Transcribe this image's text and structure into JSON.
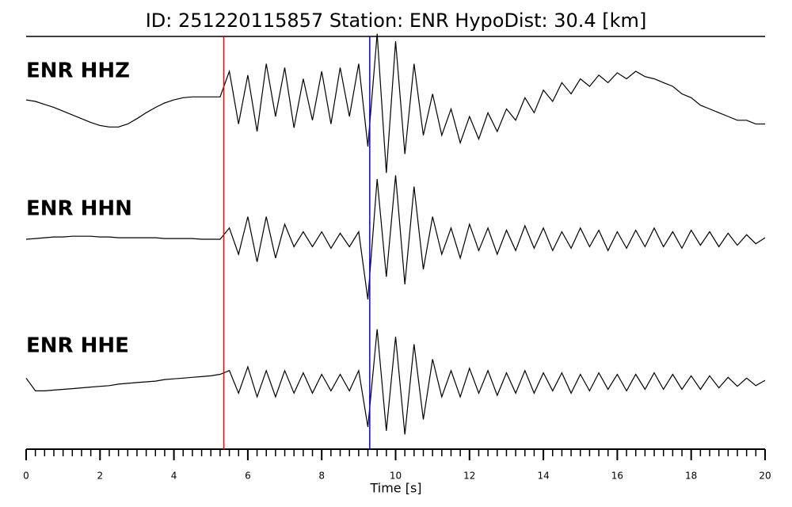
{
  "chart_data": {
    "type": "line",
    "title": "ID: 251220115857   Station: ENR   HypoDist:    30.4 [km]",
    "x_label": "Time [s]",
    "xlim": [
      0,
      20
    ],
    "xticks": [
      0,
      2,
      4,
      6,
      8,
      10,
      12,
      14,
      16,
      18,
      20
    ],
    "xminorticks": [
      0,
      0.25,
      0.5,
      0.75,
      1,
      1.25,
      1.5,
      1.75,
      2,
      2.25,
      2.5,
      2.75,
      3,
      3.25,
      3.5,
      3.75,
      4,
      4.25,
      4.5,
      4.75,
      5,
      5.25,
      5.5,
      5.75,
      6,
      6.25,
      6.5,
      6.75,
      7,
      7.25,
      7.5,
      7.75,
      8,
      8.25,
      8.5,
      8.75,
      9,
      9.25,
      9.5,
      9.75,
      10,
      10.25,
      10.5,
      10.75,
      11,
      11.25,
      11.5,
      11.75,
      12,
      12.25,
      12.5,
      12.75,
      13,
      13.25,
      13.5,
      13.75,
      14,
      14.25,
      14.5,
      14.75,
      15,
      15.25,
      15.5,
      15.75,
      16,
      16.25,
      16.5,
      16.75,
      17,
      17.25,
      17.5,
      17.75,
      18,
      18.25,
      18.5,
      18.75,
      19,
      19.25,
      19.5,
      19.75,
      20
    ],
    "ylim": [
      -1,
      1
    ],
    "label_color": "#4c9a00",
    "markers": [
      {
        "x": 5.35,
        "color": "#ff0000"
      },
      {
        "x": 9.3,
        "color": "#0000ff"
      }
    ],
    "x": [
      0,
      0.25,
      0.5,
      0.75,
      1,
      1.25,
      1.5,
      1.75,
      2,
      2.25,
      2.5,
      2.75,
      3,
      3.25,
      3.5,
      3.75,
      4,
      4.25,
      4.5,
      4.75,
      5,
      5.25,
      5.5,
      5.75,
      6,
      6.25,
      6.5,
      6.75,
      7,
      7.25,
      7.5,
      7.75,
      8,
      8.25,
      8.5,
      8.75,
      9,
      9.25,
      9.5,
      9.75,
      10,
      10.25,
      10.5,
      10.75,
      11,
      11.25,
      11.5,
      11.75,
      12,
      12.25,
      12.5,
      12.75,
      13,
      13.25,
      13.5,
      13.75,
      14,
      14.25,
      14.5,
      14.75,
      15,
      15.25,
      15.5,
      15.75,
      16,
      16.25,
      16.5,
      16.75,
      17,
      17.25,
      17.5,
      17.75,
      18,
      18.25,
      18.5,
      18.75,
      19,
      19.25,
      19.5,
      19.75,
      20
    ],
    "series": [
      {
        "name": "ENR HHZ",
        "color": "#000000",
        "values": [
          0.02,
          0,
          -0.04,
          -0.08,
          -0.13,
          -0.18,
          -0.23,
          -0.28,
          -0.32,
          -0.34,
          -0.34,
          -0.3,
          -0.23,
          -0.15,
          -0.08,
          -0.02,
          0.02,
          0.05,
          0.06,
          0.06,
          0.06,
          0.06,
          0.4,
          -0.3,
          0.35,
          -0.4,
          0.5,
          -0.2,
          0.45,
          -0.35,
          0.3,
          -0.25,
          0.4,
          -0.3,
          0.45,
          -0.2,
          0.5,
          -0.6,
          0.9,
          -0.95,
          0.8,
          -0.7,
          0.5,
          -0.45,
          0.1,
          -0.45,
          -0.1,
          -0.55,
          -0.2,
          -0.5,
          -0.15,
          -0.4,
          -0.1,
          -0.25,
          0.05,
          -0.15,
          0.15,
          0,
          0.25,
          0.1,
          0.3,
          0.2,
          0.35,
          0.25,
          0.38,
          0.3,
          0.4,
          0.33,
          0.3,
          0.25,
          0.2,
          0.1,
          0.05,
          -0.05,
          -0.1,
          -0.15,
          -0.2,
          -0.25,
          -0.25,
          -0.3,
          -0.3
        ]
      },
      {
        "name": "ENR HHN",
        "color": "#000000",
        "values": [
          0,
          0.01,
          0.02,
          0.03,
          0.03,
          0.04,
          0.04,
          0.04,
          0.03,
          0.03,
          0.02,
          0.02,
          0.02,
          0.02,
          0.02,
          0.01,
          0.01,
          0.01,
          0.01,
          0,
          0,
          0,
          0.15,
          -0.2,
          0.3,
          -0.3,
          0.3,
          -0.25,
          0.2,
          -0.1,
          0.1,
          -0.1,
          0.1,
          -0.12,
          0.08,
          -0.1,
          0.1,
          -0.8,
          0.8,
          -0.5,
          0.85,
          -0.6,
          0.7,
          -0.4,
          0.3,
          -0.2,
          0.15,
          -0.25,
          0.2,
          -0.15,
          0.15,
          -0.2,
          0.12,
          -0.15,
          0.18,
          -0.12,
          0.15,
          -0.15,
          0.1,
          -0.12,
          0.15,
          -0.1,
          0.12,
          -0.15,
          0.1,
          -0.12,
          0.12,
          -0.1,
          0.15,
          -0.1,
          0.1,
          -0.12,
          0.12,
          -0.08,
          0.1,
          -0.1,
          0.08,
          -0.08,
          0.06,
          -0.06,
          0.02
        ]
      },
      {
        "name": "ENR HHE",
        "color": "#000000",
        "values": [
          0.05,
          -0.12,
          -0.12,
          -0.11,
          -0.1,
          -0.09,
          -0.08,
          -0.07,
          -0.06,
          -0.05,
          -0.03,
          -0.02,
          -0.01,
          0,
          0.01,
          0.03,
          0.04,
          0.05,
          0.06,
          0.07,
          0.08,
          0.1,
          0.15,
          -0.15,
          0.2,
          -0.2,
          0.15,
          -0.2,
          0.15,
          -0.15,
          0.12,
          -0.15,
          0.1,
          -0.12,
          0.1,
          -0.12,
          0.15,
          -0.6,
          0.7,
          -0.65,
          0.6,
          -0.7,
          0.5,
          -0.5,
          0.3,
          -0.2,
          0.15,
          -0.2,
          0.18,
          -0.15,
          0.15,
          -0.18,
          0.12,
          -0.15,
          0.15,
          -0.15,
          0.12,
          -0.12,
          0.12,
          -0.15,
          0.1,
          -0.12,
          0.12,
          -0.1,
          0.1,
          -0.12,
          0.1,
          -0.1,
          0.12,
          -0.1,
          0.1,
          -0.1,
          0.08,
          -0.1,
          0.08,
          -0.08,
          0.06,
          -0.06,
          0.05,
          -0.05,
          0.02
        ]
      }
    ]
  }
}
